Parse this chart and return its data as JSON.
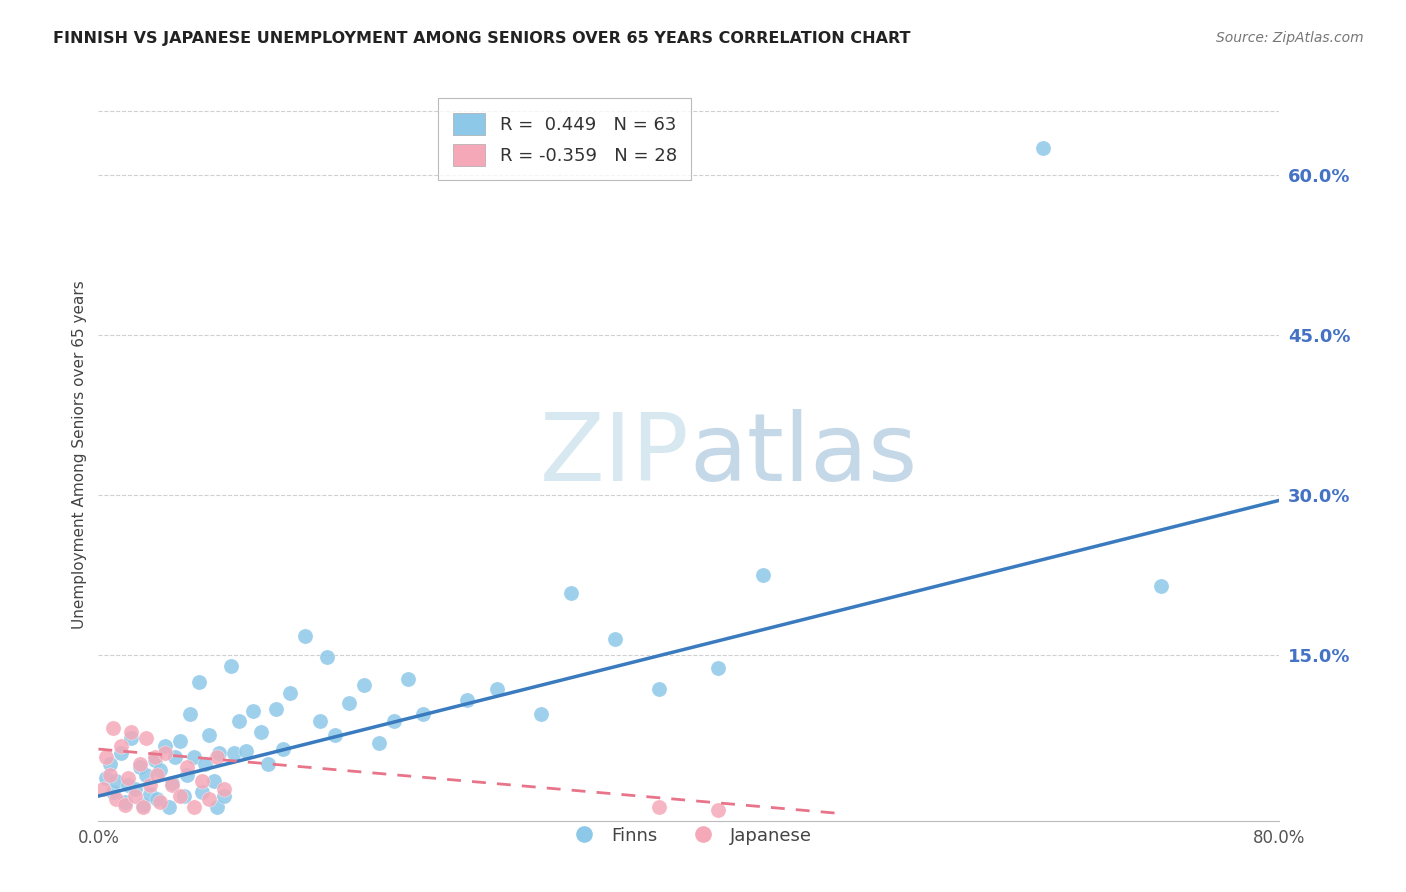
{
  "title": "FINNISH VS JAPANESE UNEMPLOYMENT AMONG SENIORS OVER 65 YEARS CORRELATION CHART",
  "source": "Source: ZipAtlas.com",
  "ylabel": "Unemployment Among Seniors over 65 years",
  "xlim": [
    0.0,
    0.8
  ],
  "ylim": [
    -0.005,
    0.68
  ],
  "xticks": [
    0.0,
    0.2,
    0.4,
    0.6,
    0.8
  ],
  "xtick_labels": [
    "0.0%",
    "",
    "",
    "",
    "80.0%"
  ],
  "yticks_right": [
    0.15,
    0.3,
    0.45,
    0.6
  ],
  "ytick_right_labels": [
    "15.0%",
    "30.0%",
    "45.0%",
    "60.0%"
  ],
  "finns_R": 0.449,
  "finns_N": 63,
  "japanese_R": -0.359,
  "japanese_N": 28,
  "watermark_zip": "ZIP",
  "watermark_atlas": "atlas",
  "finn_color": "#8ec8e8",
  "finn_color_dark": "#3a7bbf",
  "japanese_color": "#f4a8b8",
  "japanese_color_dark": "#e8748a",
  "legend_finn_label": "Finns",
  "legend_japanese_label": "Japanese",
  "finns_x": [
    0.005,
    0.008,
    0.01,
    0.012,
    0.015,
    0.018,
    0.02,
    0.022,
    0.025,
    0.028,
    0.03,
    0.032,
    0.035,
    0.038,
    0.04,
    0.042,
    0.045,
    0.048,
    0.05,
    0.052,
    0.055,
    0.058,
    0.06,
    0.062,
    0.065,
    0.068,
    0.07,
    0.072,
    0.075,
    0.078,
    0.08,
    0.082,
    0.085,
    0.09,
    0.092,
    0.095,
    0.1,
    0.105,
    0.11,
    0.115,
    0.12,
    0.125,
    0.13,
    0.14,
    0.15,
    0.155,
    0.16,
    0.17,
    0.18,
    0.19,
    0.2,
    0.21,
    0.22,
    0.25,
    0.27,
    0.3,
    0.32,
    0.35,
    0.38,
    0.42,
    0.45,
    0.64,
    0.72
  ],
  "finns_y": [
    0.035,
    0.048,
    0.022,
    0.032,
    0.058,
    0.012,
    0.028,
    0.072,
    0.025,
    0.045,
    0.01,
    0.038,
    0.02,
    0.052,
    0.015,
    0.042,
    0.065,
    0.008,
    0.03,
    0.055,
    0.07,
    0.018,
    0.038,
    0.095,
    0.055,
    0.125,
    0.022,
    0.048,
    0.075,
    0.032,
    0.008,
    0.058,
    0.018,
    0.14,
    0.058,
    0.088,
    0.06,
    0.098,
    0.078,
    0.048,
    0.1,
    0.062,
    0.115,
    0.168,
    0.088,
    0.148,
    0.075,
    0.105,
    0.122,
    0.068,
    0.088,
    0.128,
    0.095,
    0.108,
    0.118,
    0.095,
    0.208,
    0.165,
    0.118,
    0.138,
    0.225,
    0.625,
    0.215
  ],
  "japanese_x": [
    0.003,
    0.005,
    0.008,
    0.01,
    0.012,
    0.015,
    0.018,
    0.02,
    0.022,
    0.025,
    0.028,
    0.03,
    0.032,
    0.035,
    0.038,
    0.04,
    0.042,
    0.045,
    0.05,
    0.055,
    0.06,
    0.065,
    0.07,
    0.075,
    0.08,
    0.085,
    0.38,
    0.42
  ],
  "japanese_y": [
    0.025,
    0.055,
    0.038,
    0.082,
    0.015,
    0.065,
    0.01,
    0.035,
    0.078,
    0.018,
    0.048,
    0.008,
    0.072,
    0.028,
    0.055,
    0.038,
    0.012,
    0.058,
    0.028,
    0.018,
    0.045,
    0.008,
    0.032,
    0.015,
    0.055,
    0.025,
    0.008,
    0.005
  ],
  "finn_trendline_x": [
    0.0,
    0.8
  ],
  "finn_trendline_y": [
    0.018,
    0.295
  ],
  "japanese_trendline_x": [
    0.0,
    0.5
  ],
  "japanese_trendline_y": [
    0.062,
    0.002
  ]
}
